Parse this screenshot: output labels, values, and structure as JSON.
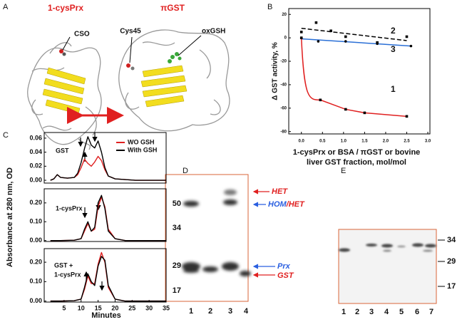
{
  "panel_a": {
    "label": "A",
    "left_protein": "1-cysPrx",
    "right_protein": "πGST",
    "site_labels": [
      "CSO",
      "Cys45",
      "oxGSH"
    ]
  },
  "chart_data": [
    {
      "type": "scatter",
      "panel_label": "B",
      "y_label": "Δ GST activity, %",
      "x_label": [
        "1-cysPrx or BSA / πGST or bovine",
        "liver GST fraction, mol/mol"
      ],
      "xlim": [
        -0.3,
        3.05
      ],
      "ylim": [
        -82,
        25
      ],
      "xticks": [
        {
          "value": 0,
          "label": "0.0"
        },
        0.5,
        {
          "value": 1,
          "label": "1.0"
        },
        1.5,
        {
          "value": 2,
          "label": "2.0"
        },
        2.5,
        {
          "value": 3,
          "label": "3.0"
        }
      ],
      "yticks": [
        20,
        0,
        -20,
        -40,
        -60,
        -80
      ],
      "series": [
        {
          "name": "2",
          "color": "#000000",
          "line_style": "dashed",
          "fit": "linear",
          "x": [
            0,
            0.35,
            0.7,
            1.05,
            1.8,
            2.5
          ],
          "values": [
            5,
            13,
            6,
            1,
            -4,
            1
          ]
        },
        {
          "name": "3",
          "color": "#2a6fd6",
          "line_style": "solid",
          "fit": "linear",
          "x": [
            0,
            0.4,
            1.05,
            1.8,
            2.6
          ],
          "values": [
            0,
            -3,
            -3,
            -5,
            -7
          ]
        },
        {
          "name": "1",
          "color": "#e02020",
          "line_style": "solid",
          "fit": "curve",
          "x": [
            0,
            0.45,
            1.05,
            1.5,
            2.5
          ],
          "values": [
            0,
            -53,
            -61,
            -64,
            -67
          ]
        }
      ]
    },
    {
      "type": "line",
      "annotation": [
        "GST"
      ],
      "xlim": [
        0,
        35
      ],
      "ylim": [
        -0.004,
        0.068
      ],
      "yticks": [
        {
          "value": 0,
          "label": "0.00"
        },
        0.02,
        0.04,
        0.06
      ],
      "legend": "upper right",
      "x": [
        1,
        2,
        3,
        4,
        6,
        8,
        9,
        10,
        11,
        12,
        13,
        14,
        15,
        16,
        17,
        18,
        20,
        23,
        26,
        30,
        35
      ],
      "series": [
        {
          "name": "WO GSH",
          "color": "#e02020",
          "values": [
            0,
            0.002,
            0.008,
            0.004,
            0.003,
            0.004,
            0.008,
            0.018,
            0.03,
            0.024,
            0.02,
            0.026,
            0.034,
            0.028,
            0.015,
            0.006,
            0.002,
            0.001,
            0,
            0,
            0
          ]
        },
        {
          "name": "With GSH",
          "color": "#000000",
          "values": [
            0,
            0.002,
            0.008,
            0.004,
            0.003,
            0.004,
            0.01,
            0.025,
            0.045,
            0.062,
            0.05,
            0.046,
            0.056,
            0.04,
            0.018,
            0.006,
            0.002,
            0.001,
            0,
            0,
            0
          ]
        }
      ]
    },
    {
      "type": "line",
      "annotation": [
        "1-cysPrx"
      ],
      "xlim": [
        0,
        35
      ],
      "ylim": [
        -0.005,
        0.275
      ],
      "yticks": [
        {
          "value": 0,
          "label": "0.00"
        },
        {
          "value": 0.1,
          "label": "0.10"
        },
        {
          "value": 0.2,
          "label": "0.20"
        }
      ],
      "x": [
        1,
        4,
        8,
        10,
        11,
        12,
        13,
        14,
        15,
        16,
        17,
        18,
        20,
        23,
        26,
        30,
        35
      ],
      "series": [
        {
          "name": "WO GSH",
          "color": "#e02020",
          "values": [
            0,
            0,
            0.002,
            0.01,
            0.05,
            0.09,
            0.05,
            0.06,
            0.18,
            0.23,
            0.18,
            0.06,
            0.01,
            0,
            0,
            0,
            0
          ]
        },
        {
          "name": "With GSH",
          "color": "#000000",
          "values": [
            0,
            0,
            0.002,
            0.01,
            0.06,
            0.1,
            0.05,
            0.07,
            0.2,
            0.24,
            0.17,
            0.05,
            0.01,
            0,
            0,
            0,
            0
          ]
        }
      ]
    },
    {
      "type": "line",
      "annotation": [
        "GST +",
        "1-cysPrx"
      ],
      "xlim": [
        0,
        35
      ],
      "ylim": [
        -0.005,
        0.27
      ],
      "yticks": [
        {
          "value": 0,
          "label": "0.00"
        },
        {
          "value": 0.1,
          "label": "0.10"
        },
        {
          "value": 0.2,
          "label": "0.20"
        }
      ],
      "xticks": [
        5,
        10,
        15,
        20,
        25,
        30,
        35
      ],
      "x": [
        1,
        4,
        8,
        10,
        11,
        12,
        13,
        14,
        15,
        16,
        17,
        18,
        20,
        23,
        26,
        30,
        35
      ],
      "series": [
        {
          "name": "WO GSH",
          "color": "#e02020",
          "values": [
            0,
            0,
            0.002,
            0.01,
            0.06,
            0.13,
            0.09,
            0.09,
            0.19,
            0.25,
            0.2,
            0.07,
            0.01,
            0,
            0,
            0,
            0
          ]
        },
        {
          "name": "With GSH",
          "color": "#000000",
          "values": [
            0,
            0,
            0.002,
            0.01,
            0.07,
            0.14,
            0.1,
            0.08,
            0.18,
            0.23,
            0.21,
            0.08,
            0.01,
            0,
            0,
            0,
            0
          ]
        }
      ]
    }
  ],
  "panel_c": {
    "label": "C",
    "y_label": "Absorbance at 280 nm, OD",
    "x_label": "Minutes"
  },
  "panel_d": {
    "label": "D",
    "markers": [
      "50",
      "34",
      "29",
      "17"
    ],
    "lanes": [
      "1",
      "2",
      "3",
      "4"
    ],
    "band_labels": [
      "HET",
      "HOM",
      "/HET",
      "Prx",
      "GST"
    ]
  },
  "panel_e": {
    "label": "E",
    "markers": [
      "34",
      "29",
      "17"
    ],
    "lanes": [
      "1",
      "2",
      "3",
      "4",
      "5",
      "6",
      "7"
    ]
  }
}
